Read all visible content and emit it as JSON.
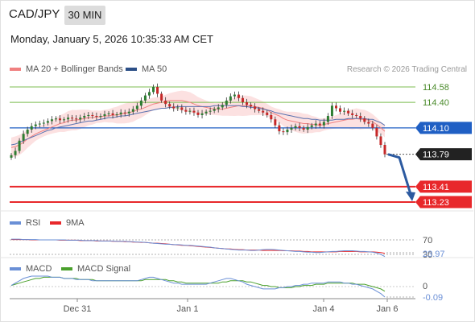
{
  "header": {
    "symbol": "CAD/JPY",
    "timeframe": "30 MIN",
    "datetime": "Monday, January 5, 2026 10:35:33 AM CET"
  },
  "legend": {
    "bollinger": {
      "label": "MA 20 + Bollinger Bands",
      "color": "#f08080"
    },
    "ma50": {
      "label": "MA 50",
      "color": "#2c4f87"
    },
    "credit": "Research © 2026 Trading Central"
  },
  "rsi_legend": {
    "rsi": {
      "label": "RSI",
      "color": "#6a8fd6"
    },
    "ma9": {
      "label": "9MA",
      "color": "#e8282b"
    }
  },
  "macd_legend": {
    "macd": {
      "label": "MACD",
      "color": "#6a8fd6"
    },
    "signal": {
      "label": "MACD Signal",
      "color": "#4aa02c"
    }
  },
  "colors": {
    "up": "#2e7d32",
    "down": "#c62828",
    "pivot": "#1f5fc4",
    "support": "#e8282b",
    "resistance": "#7cbd52",
    "arrow": "#2c5aa0"
  },
  "chart_data": [
    {
      "type": "candlestick",
      "title": "CAD/JPY 30 MIN",
      "ylim": [
        113.0,
        114.7
      ],
      "x_ticks": [
        "Dec 31",
        "Jan 1",
        "Jan 4",
        "Jan 6"
      ],
      "levels": [
        {
          "label": "114.58",
          "value": 114.58,
          "kind": "resistance"
        },
        {
          "label": "114.40",
          "value": 114.4,
          "kind": "resistance"
        },
        {
          "label": "114.10",
          "value": 114.1,
          "kind": "pivot"
        },
        {
          "label": "113.79",
          "value": 113.79,
          "kind": "last"
        },
        {
          "label": "113.41",
          "value": 113.41,
          "kind": "support"
        },
        {
          "label": "113.23",
          "value": 113.23,
          "kind": "support"
        }
      ],
      "close": [
        113.78,
        113.83,
        113.95,
        114.03,
        114.08,
        114.12,
        114.14,
        114.15,
        114.16,
        114.18,
        114.2,
        114.21,
        114.19,
        114.2,
        114.22,
        114.21,
        114.2,
        114.22,
        114.24,
        114.25,
        114.24,
        114.23,
        114.24,
        114.26,
        114.27,
        114.25,
        114.26,
        114.28,
        114.27,
        114.29,
        114.32,
        114.36,
        114.42,
        114.48,
        114.52,
        114.58,
        114.5,
        114.42,
        114.38,
        114.35,
        114.33,
        114.34,
        114.31,
        114.29,
        114.3,
        114.28,
        114.25,
        114.27,
        114.29,
        114.3,
        114.32,
        114.34,
        114.37,
        114.42,
        114.47,
        114.49,
        114.45,
        114.4,
        114.37,
        114.35,
        114.32,
        114.3,
        114.28,
        114.25,
        114.2,
        114.13,
        114.06,
        114.05,
        114.08,
        114.1,
        114.12,
        114.1,
        114.08,
        114.11,
        114.13,
        114.15,
        114.13,
        114.17,
        114.24,
        114.36,
        114.33,
        114.29,
        114.3,
        114.27,
        114.25,
        114.24,
        114.21,
        114.17,
        114.15,
        114.1,
        114.0,
        113.9,
        113.79
      ],
      "ma20": [
        113.87,
        113.88,
        113.9,
        113.93,
        113.97,
        114.0,
        114.03,
        114.05,
        114.07,
        114.09,
        114.11,
        114.13,
        114.15,
        114.16,
        114.18,
        114.19,
        114.19,
        114.2,
        114.21,
        114.22,
        114.22,
        114.23,
        114.23,
        114.24,
        114.24,
        114.25,
        114.25,
        114.26,
        114.27,
        114.28,
        114.29,
        114.31,
        114.32,
        114.34,
        114.36,
        114.38,
        114.39,
        114.4,
        114.41,
        114.42,
        114.42,
        114.42,
        114.42,
        114.41,
        114.4,
        114.38,
        114.36,
        114.35,
        114.34,
        114.33,
        114.32,
        114.32,
        114.32,
        114.33,
        114.34,
        114.35,
        114.36,
        114.36,
        114.36,
        114.36,
        114.35,
        114.34,
        114.33,
        114.31,
        114.28,
        114.26,
        114.24,
        114.21,
        114.19,
        114.18,
        114.17,
        114.16,
        114.15,
        114.15,
        114.14,
        114.14,
        114.13,
        114.14,
        114.15,
        114.16,
        114.17,
        114.18,
        114.19,
        114.2,
        114.2,
        114.21,
        114.2,
        114.2,
        114.19,
        114.17,
        114.14,
        114.1,
        114.06
      ],
      "ma50": [
        113.9,
        113.91,
        113.93,
        113.95,
        113.97,
        113.99,
        114.01,
        114.03,
        114.05,
        114.07,
        114.08,
        114.1,
        114.11,
        114.12,
        114.13,
        114.14,
        114.15,
        114.16,
        114.17,
        114.18,
        114.18,
        114.19,
        114.2,
        114.21,
        114.22,
        114.22,
        114.23,
        114.24,
        114.24,
        114.25,
        114.26,
        114.27,
        114.28,
        114.29,
        114.3,
        114.31,
        114.32,
        114.33,
        114.33,
        114.34,
        114.34,
        114.35,
        114.35,
        114.35,
        114.35,
        114.35,
        114.35,
        114.35,
        114.35,
        114.35,
        114.36,
        114.36,
        114.36,
        114.36,
        114.36,
        114.36,
        114.36,
        114.35,
        114.35,
        114.34,
        114.34,
        114.33,
        114.32,
        114.31,
        114.3,
        114.28,
        114.27,
        114.26,
        114.25,
        114.24,
        114.23,
        114.22,
        114.21,
        114.21,
        114.2,
        114.2,
        114.19,
        114.19,
        114.19,
        114.19,
        114.2,
        114.2,
        114.2,
        114.21,
        114.21,
        114.21,
        114.21,
        114.21,
        114.2,
        114.2,
        114.18,
        114.16,
        114.13
      ]
    },
    {
      "type": "line",
      "title": "RSI",
      "ylim": [
        20,
        80
      ],
      "ref_labels": [
        "70",
        "30"
      ],
      "last_label": "23.97",
      "series": [
        {
          "name": "RSI",
          "values": [
            72,
            72,
            72,
            71,
            71,
            71,
            71,
            70,
            70,
            70,
            70,
            70,
            70,
            70,
            69,
            69,
            69,
            69,
            68,
            68,
            68,
            68,
            67,
            67,
            67,
            67,
            66,
            66,
            66,
            65,
            65,
            64,
            64,
            63,
            62,
            61,
            60,
            59,
            58,
            58,
            57,
            57,
            56,
            55,
            55,
            54,
            53,
            52,
            51,
            50,
            48,
            47,
            46,
            45,
            44,
            43,
            42,
            42,
            42,
            41,
            41,
            42,
            43,
            44,
            44,
            43,
            42,
            41,
            40,
            39,
            38,
            38,
            37,
            36,
            36,
            35,
            35,
            36,
            37,
            38,
            38,
            39,
            40,
            40,
            40,
            39,
            38,
            38,
            37,
            36,
            34,
            30,
            24
          ]
        },
        {
          "name": "9MA",
          "values": [
            71,
            71,
            71,
            71,
            71,
            70,
            70,
            70,
            70,
            70,
            70,
            70,
            69,
            69,
            69,
            69,
            69,
            68,
            68,
            68,
            68,
            67,
            67,
            67,
            67,
            66,
            66,
            66,
            65,
            65,
            64,
            64,
            63,
            63,
            62,
            61,
            61,
            60,
            59,
            58,
            57,
            56,
            55,
            55,
            54,
            53,
            52,
            51,
            50,
            49,
            48,
            47,
            46,
            45,
            45,
            44,
            43,
            43,
            42,
            42,
            42,
            42,
            41,
            41,
            41,
            41,
            41,
            40,
            40,
            40,
            39,
            39,
            38,
            38,
            37,
            37,
            37,
            37,
            37,
            37,
            37,
            38,
            38,
            38,
            38,
            38,
            37,
            37,
            37,
            37,
            36,
            35,
            33
          ]
        }
      ]
    },
    {
      "type": "line",
      "title": "MACD",
      "ylim": [
        -0.12,
        0.12
      ],
      "ref_labels": [
        "0"
      ],
      "last_label": "-0.09",
      "series": [
        {
          "name": "MACD",
          "values": [
            0.01,
            0.03,
            0.05,
            0.07,
            0.08,
            0.09,
            0.09,
            0.09,
            0.09,
            0.09,
            0.08,
            0.08,
            0.08,
            0.07,
            0.07,
            0.07,
            0.06,
            0.06,
            0.06,
            0.06,
            0.05,
            0.05,
            0.05,
            0.05,
            0.05,
            0.05,
            0.05,
            0.05,
            0.05,
            0.05,
            0.05,
            0.05,
            0.06,
            0.07,
            0.08,
            0.08,
            0.07,
            0.06,
            0.05,
            0.04,
            0.03,
            0.03,
            0.02,
            0.02,
            0.02,
            0.02,
            0.02,
            0.02,
            0.02,
            0.03,
            0.04,
            0.05,
            0.06,
            0.07,
            0.07,
            0.06,
            0.05,
            0.04,
            0.02,
            0.01,
            0.0,
            -0.01,
            -0.02,
            -0.02,
            -0.02,
            -0.02,
            -0.01,
            -0.01,
            0.0,
            0.0,
            0.01,
            0.01,
            0.02,
            0.02,
            0.03,
            0.03,
            0.03,
            0.03,
            0.04,
            0.04,
            0.04,
            0.04,
            0.03,
            0.03,
            0.02,
            0.02,
            0.01,
            0.0,
            -0.01,
            -0.02,
            -0.04,
            -0.06,
            -0.09
          ]
        },
        {
          "name": "MACD Signal",
          "values": [
            0.01,
            0.02,
            0.03,
            0.04,
            0.05,
            0.06,
            0.07,
            0.07,
            0.08,
            0.08,
            0.08,
            0.08,
            0.08,
            0.07,
            0.07,
            0.07,
            0.07,
            0.06,
            0.06,
            0.06,
            0.06,
            0.05,
            0.05,
            0.05,
            0.05,
            0.05,
            0.05,
            0.05,
            0.05,
            0.05,
            0.05,
            0.05,
            0.05,
            0.06,
            0.06,
            0.06,
            0.06,
            0.06,
            0.06,
            0.05,
            0.05,
            0.04,
            0.04,
            0.03,
            0.03,
            0.03,
            0.03,
            0.03,
            0.03,
            0.03,
            0.03,
            0.03,
            0.04,
            0.04,
            0.05,
            0.05,
            0.05,
            0.05,
            0.04,
            0.04,
            0.03,
            0.02,
            0.01,
            0.01,
            0.0,
            0.0,
            -0.01,
            -0.01,
            -0.01,
            -0.01,
            0.0,
            0.0,
            0.01,
            0.01,
            0.01,
            0.02,
            0.02,
            0.02,
            0.03,
            0.03,
            0.03,
            0.03,
            0.03,
            0.03,
            0.03,
            0.02,
            0.02,
            0.02,
            0.01,
            0.0,
            -0.01,
            -0.02,
            -0.04
          ]
        }
      ]
    }
  ]
}
